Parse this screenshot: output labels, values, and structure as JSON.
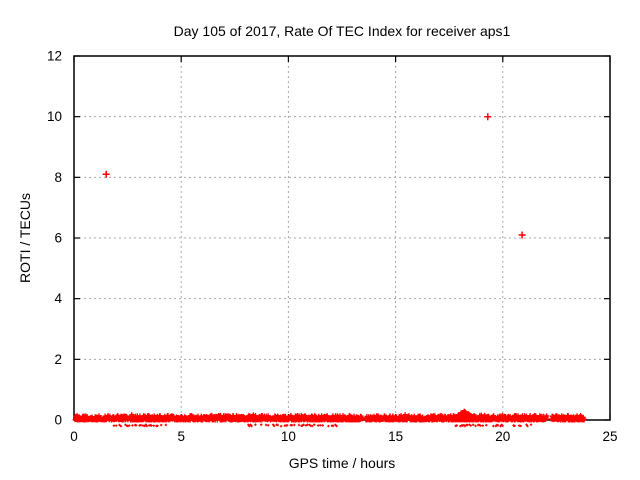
{
  "window": {
    "background": "#ffffff"
  },
  "chart_data": {
    "type": "scatter",
    "title": "Day 105 of 2017, Rate Of TEC Index for receiver aps1",
    "xlabel": "GPS time / hours",
    "ylabel": "ROTI / TECUs",
    "xlim": [
      0,
      25
    ],
    "ylim": [
      0,
      12
    ],
    "xticks": [
      0,
      5,
      10,
      15,
      20,
      25
    ],
    "yticks": [
      0,
      2,
      4,
      6,
      8,
      10,
      12
    ],
    "grid": true,
    "legend": "none",
    "marker": "plus",
    "marker_color": "#ff0000",
    "grid_color": "#a8a8a8",
    "border_color": "#000000",
    "outlier_points": [
      [
        1.5,
        8.1
      ],
      [
        19.3,
        10.0
      ],
      [
        20.9,
        6.1
      ]
    ],
    "baseline_band": {
      "description": "dense cluster of ROTI values hugging zero across the day",
      "segments": [
        [
          0.05,
          13.45
        ],
        [
          13.6,
          22.05
        ],
        [
          22.25,
          23.8
        ]
      ],
      "y_range": [
        0,
        0.15
      ],
      "bump": {
        "x_range": [
          17.75,
          18.65
        ],
        "y_max": 0.3
      },
      "sparse_subrow_value": -0.18,
      "sparse_subrow_ranges": [
        [
          1.8,
          4.6
        ],
        [
          7.8,
          12.4
        ],
        [
          17.8,
          21.5
        ]
      ]
    }
  }
}
